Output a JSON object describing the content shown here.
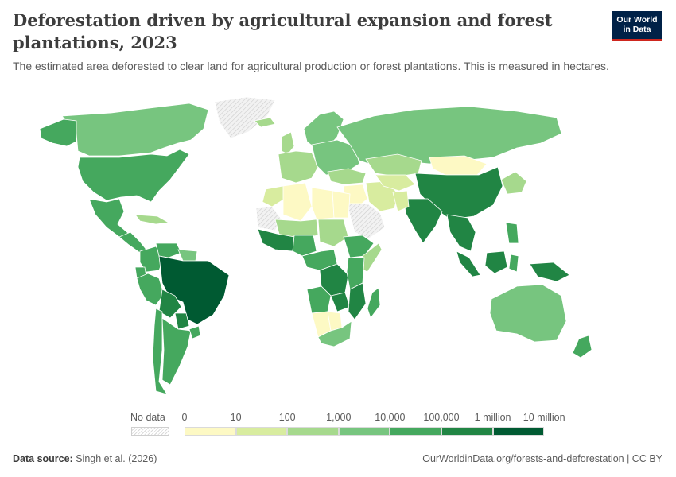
{
  "header": {
    "title": "Deforestation driven by agricultural expansion and forest plantations, 2023",
    "subtitle": "The estimated area deforested to clear land for agricultural production or forest plantations. This is measured in hectares.",
    "logo_line1": "Our World",
    "logo_line2": "in Data"
  },
  "legend": {
    "no_data_label": "No data",
    "ticks": [
      "0",
      "10",
      "100",
      "1,000",
      "10,000",
      "100,000",
      "1 million",
      "10 million"
    ],
    "bin_colors": [
      "#fdf9c4",
      "#d8ec9f",
      "#a6d98d",
      "#77c57f",
      "#45a85e",
      "#218544",
      "#005a32"
    ]
  },
  "footer": {
    "source_label": "Data source:",
    "source_text": "Singh et al. (2026)",
    "credit": "OurWorldinData.org/forests-and-deforestation | CC BY"
  },
  "colors": {
    "bin_1": "#fdf9c4",
    "bin_2": "#d8ec9f",
    "bin_3": "#a6d98d",
    "bin_4": "#77c57f",
    "bin_5": "#45a85e",
    "bin_6": "#218544",
    "bin_7": "#005a32",
    "no_data": "#e3e3e3",
    "border": "#ffffff"
  },
  "regions": [
    {
      "name": "Canada",
      "bin": 4
    },
    {
      "name": "United States",
      "bin": 5
    },
    {
      "name": "Alaska",
      "bin": 5
    },
    {
      "name": "Greenland",
      "bin": 0
    },
    {
      "name": "Mexico",
      "bin": 5
    },
    {
      "name": "Central America",
      "bin": 5
    },
    {
      "name": "Caribbean",
      "bin": 3
    },
    {
      "name": "Colombia",
      "bin": 5
    },
    {
      "name": "Venezuela",
      "bin": 5
    },
    {
      "name": "Guianas",
      "bin": 4
    },
    {
      "name": "Ecuador",
      "bin": 5
    },
    {
      "name": "Peru",
      "bin": 5
    },
    {
      "name": "Brazil",
      "bin": 7
    },
    {
      "name": "Bolivia",
      "bin": 6
    },
    {
      "name": "Paraguay",
      "bin": 6
    },
    {
      "name": "Chile",
      "bin": 5
    },
    {
      "name": "Argentina",
      "bin": 5
    },
    {
      "name": "Uruguay",
      "bin": 5
    },
    {
      "name": "Iceland",
      "bin": 3
    },
    {
      "name": "Scandinavia",
      "bin": 4
    },
    {
      "name": "United Kingdom",
      "bin": 3
    },
    {
      "name": "Western Europe",
      "bin": 3
    },
    {
      "name": "Eastern Europe",
      "bin": 4
    },
    {
      "name": "Russia",
      "bin": 4
    },
    {
      "name": "Turkey and Caucasus",
      "bin": 3
    },
    {
      "name": "Middle East",
      "bin": 1
    },
    {
      "name": "Iran",
      "bin": 2
    },
    {
      "name": "Arabian Peninsula",
      "bin": 0
    },
    {
      "name": "Kazakhstan",
      "bin": 3
    },
    {
      "name": "Central Asia",
      "bin": 2
    },
    {
      "name": "Mongolia",
      "bin": 1
    },
    {
      "name": "China",
      "bin": 6
    },
    {
      "name": "Korea and Japan",
      "bin": 3
    },
    {
      "name": "India",
      "bin": 6
    },
    {
      "name": "Pakistan",
      "bin": 2
    },
    {
      "name": "Mainland Southeast Asia",
      "bin": 6
    },
    {
      "name": "Sumatra",
      "bin": 6
    },
    {
      "name": "Borneo",
      "bin": 6
    },
    {
      "name": "Sulawesi",
      "bin": 5
    },
    {
      "name": "Philippines",
      "bin": 5
    },
    {
      "name": "New Guinea",
      "bin": 6
    },
    {
      "name": "Australia",
      "bin": 4
    },
    {
      "name": "New Zealand",
      "bin": 5
    },
    {
      "name": "Morocco",
      "bin": 2
    },
    {
      "name": "Algeria",
      "bin": 1
    },
    {
      "name": "Libya",
      "bin": 1
    },
    {
      "name": "Egypt",
      "bin": 1
    },
    {
      "name": "Western Sahara and Mauritania",
      "bin": 0
    },
    {
      "name": "Sahel",
      "bin": 3
    },
    {
      "name": "Sudan",
      "bin": 3
    },
    {
      "name": "West Africa",
      "bin": 6
    },
    {
      "name": "Nigeria",
      "bin": 5
    },
    {
      "name": "Ethiopia",
      "bin": 5
    },
    {
      "name": "Somalia",
      "bin": 3
    },
    {
      "name": "Central Africa",
      "bin": 5
    },
    {
      "name": "DR Congo",
      "bin": 6
    },
    {
      "name": "East Africa",
      "bin": 5
    },
    {
      "name": "Angola",
      "bin": 5
    },
    {
      "name": "Zambia",
      "bin": 6
    },
    {
      "name": "Mozambique",
      "bin": 6
    },
    {
      "name": "Namibia",
      "bin": 1
    },
    {
      "name": "Botswana",
      "bin": 1
    },
    {
      "name": "South Africa",
      "bin": 4
    },
    {
      "name": "Madagascar",
      "bin": 5
    }
  ]
}
